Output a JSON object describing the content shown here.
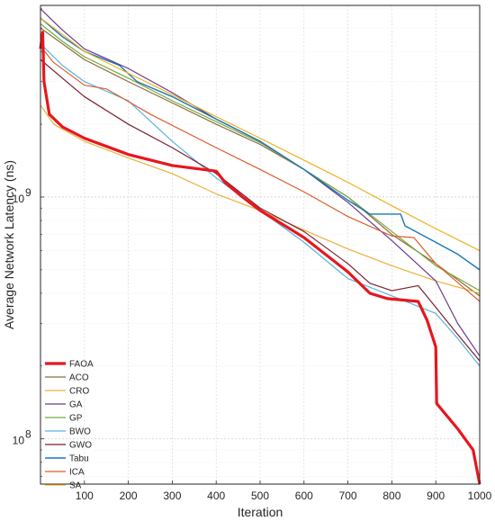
{
  "chart_data": {
    "type": "line",
    "xlabel": "Iteration",
    "ylabel": "Average Network Latency (ns)",
    "y_scale": "log",
    "xlim": [
      0,
      1000
    ],
    "ylim": [
      65000000,
      6200000000
    ],
    "x_ticks": [
      100,
      200,
      300,
      400,
      500,
      600,
      700,
      800,
      900,
      1000
    ],
    "x_tick_labels": [
      "100",
      "200",
      "300",
      "400",
      "500",
      "600",
      "700",
      "800",
      "900",
      "1000"
    ],
    "y_tick_labels": [
      {
        "value": 100000000,
        "base": "10",
        "exp": "8"
      },
      {
        "value": 1000000000,
        "base": "10",
        "exp": "9"
      }
    ],
    "grid": true,
    "legend_position": "bottom-left",
    "series": [
      {
        "name": "FAOA",
        "color": "#e8161d",
        "width": 3.2,
        "points": [
          [
            0,
            4100000000.0
          ],
          [
            5,
            4800000000.0
          ],
          [
            8,
            3000000000.0
          ],
          [
            20,
            2200000000.0
          ],
          [
            50,
            1950000000.0
          ],
          [
            100,
            1750000000.0
          ],
          [
            200,
            1500000000.0
          ],
          [
            300,
            1350000000.0
          ],
          [
            400,
            1280000000.0
          ],
          [
            420,
            1150000000.0
          ],
          [
            460,
            1000000000.0
          ],
          [
            500,
            880000000.0
          ],
          [
            600,
            680000000.0
          ],
          [
            700,
            490000000.0
          ],
          [
            750,
            400000000.0
          ],
          [
            790,
            380000000.0
          ],
          [
            860,
            370000000.0
          ],
          [
            880,
            310000000.0
          ],
          [
            900,
            240000000.0
          ],
          [
            902,
            140000000.0
          ],
          [
            950,
            110000000.0
          ],
          [
            985,
            90000000.0
          ],
          [
            1000,
            65000000.0
          ]
        ]
      },
      {
        "name": "ACO",
        "color": "#8b6c3d",
        "width": 1.2,
        "points": [
          [
            0,
            5000000000.0
          ],
          [
            50,
            4300000000.0
          ],
          [
            100,
            3700000000.0
          ],
          [
            200,
            3000000000.0
          ],
          [
            300,
            2450000000.0
          ],
          [
            400,
            2000000000.0
          ],
          [
            500,
            1650000000.0
          ],
          [
            600,
            1300000000.0
          ],
          [
            700,
            1000000000.0
          ],
          [
            800,
            700000000.0
          ],
          [
            900,
            530000000.0
          ],
          [
            1000,
            390000000.0
          ]
        ]
      },
      {
        "name": "CRO",
        "color": "#e8b23a",
        "width": 1.2,
        "points": [
          [
            0,
            2400000000.0
          ],
          [
            30,
            2000000000.0
          ],
          [
            100,
            1700000000.0
          ],
          [
            200,
            1450000000.0
          ],
          [
            300,
            1250000000.0
          ],
          [
            400,
            1030000000.0
          ],
          [
            500,
            880000000.0
          ],
          [
            600,
            730000000.0
          ],
          [
            700,
            610000000.0
          ],
          [
            800,
            520000000.0
          ],
          [
            900,
            450000000.0
          ],
          [
            1000,
            400000000.0
          ]
        ]
      },
      {
        "name": "GA",
        "color": "#6b3a8c",
        "width": 1.2,
        "points": [
          [
            0,
            6000000000.0
          ],
          [
            50,
            4900000000.0
          ],
          [
            100,
            4100000000.0
          ],
          [
            200,
            3400000000.0
          ],
          [
            300,
            2700000000.0
          ],
          [
            400,
            2100000000.0
          ],
          [
            500,
            1700000000.0
          ],
          [
            600,
            1300000000.0
          ],
          [
            700,
            950000000.0
          ],
          [
            800,
            660000000.0
          ],
          [
            900,
            450000000.0
          ],
          [
            950,
            300000000.0
          ],
          [
            1000,
            220000000.0
          ]
        ]
      },
      {
        "name": "GP",
        "color": "#7aa83a",
        "width": 1.2,
        "points": [
          [
            0,
            5200000000.0
          ],
          [
            50,
            4400000000.0
          ],
          [
            100,
            3800000000.0
          ],
          [
            200,
            3100000000.0
          ],
          [
            300,
            2500000000.0
          ],
          [
            400,
            2050000000.0
          ],
          [
            500,
            1680000000.0
          ],
          [
            600,
            1300000000.0
          ],
          [
            700,
            1000000000.0
          ],
          [
            800,
            720000000.0
          ],
          [
            900,
            520000000.0
          ],
          [
            1000,
            410000000.0
          ]
        ]
      },
      {
        "name": "BWO",
        "color": "#5ab3dc",
        "width": 1.2,
        "points": [
          [
            0,
            4300000000.0
          ],
          [
            50,
            3500000000.0
          ],
          [
            100,
            3000000000.0
          ],
          [
            200,
            2500000000.0
          ],
          [
            300,
            1700000000.0
          ],
          [
            400,
            1200000000.0
          ],
          [
            500,
            880000000.0
          ],
          [
            600,
            650000000.0
          ],
          [
            700,
            460000000.0
          ],
          [
            800,
            390000000.0
          ],
          [
            900,
            330000000.0
          ],
          [
            950,
            260000000.0
          ],
          [
            1000,
            200000000.0
          ]
        ]
      },
      {
        "name": "GWO",
        "color": "#7a1f2c",
        "width": 1.2,
        "points": [
          [
            0,
            3700000000.0
          ],
          [
            50,
            3100000000.0
          ],
          [
            100,
            2600000000.0
          ],
          [
            200,
            2000000000.0
          ],
          [
            300,
            1600000000.0
          ],
          [
            400,
            1250000000.0
          ],
          [
            500,
            900000000.0
          ],
          [
            600,
            720000000.0
          ],
          [
            700,
            530000000.0
          ],
          [
            750,
            440000000.0
          ],
          [
            800,
            410000000.0
          ],
          [
            860,
            430000000.0
          ],
          [
            900,
            350000000.0
          ],
          [
            950,
            270000000.0
          ],
          [
            1000,
            210000000.0
          ]
        ]
      },
      {
        "name": "Tabu",
        "color": "#1a76b5",
        "width": 1.4,
        "points": [
          [
            0,
            5500000000.0
          ],
          [
            50,
            4600000000.0
          ],
          [
            100,
            4000000000.0
          ],
          [
            180,
            3500000000.0
          ],
          [
            220,
            3000000000.0
          ],
          [
            300,
            2600000000.0
          ],
          [
            400,
            2100000000.0
          ],
          [
            500,
            1700000000.0
          ],
          [
            600,
            1300000000.0
          ],
          [
            700,
            970000000.0
          ],
          [
            750,
            850000000.0
          ],
          [
            820,
            850000000.0
          ],
          [
            830,
            760000000.0
          ],
          [
            900,
            650000000.0
          ],
          [
            950,
            580000000.0
          ],
          [
            1000,
            500000000.0
          ]
        ]
      },
      {
        "name": "ICA",
        "color": "#d95f2a",
        "width": 1.2,
        "points": [
          [
            0,
            4200000000.0
          ],
          [
            30,
            3600000000.0
          ],
          [
            100,
            2900000000.0
          ],
          [
            150,
            2800000000.0
          ],
          [
            250,
            2200000000.0
          ],
          [
            400,
            1600000000.0
          ],
          [
            500,
            1300000000.0
          ],
          [
            600,
            1050000000.0
          ],
          [
            700,
            830000000.0
          ],
          [
            800,
            690000000.0
          ],
          [
            850,
            680000000.0
          ],
          [
            900,
            530000000.0
          ],
          [
            1000,
            370000000.0
          ]
        ]
      },
      {
        "name": "SA",
        "color": "#edb120",
        "width": 1.2,
        "points": [
          [
            0,
            5500000000.0
          ],
          [
            50,
            4700000000.0
          ],
          [
            100,
            4000000000.0
          ],
          [
            200,
            3250000000.0
          ],
          [
            300,
            2650000000.0
          ],
          [
            400,
            2150000000.0
          ],
          [
            500,
            1750000000.0
          ],
          [
            600,
            1420000000.0
          ],
          [
            700,
            1150000000.0
          ],
          [
            800,
            920000000.0
          ],
          [
            900,
            740000000.0
          ],
          [
            1000,
            600000000.0
          ]
        ]
      }
    ]
  }
}
